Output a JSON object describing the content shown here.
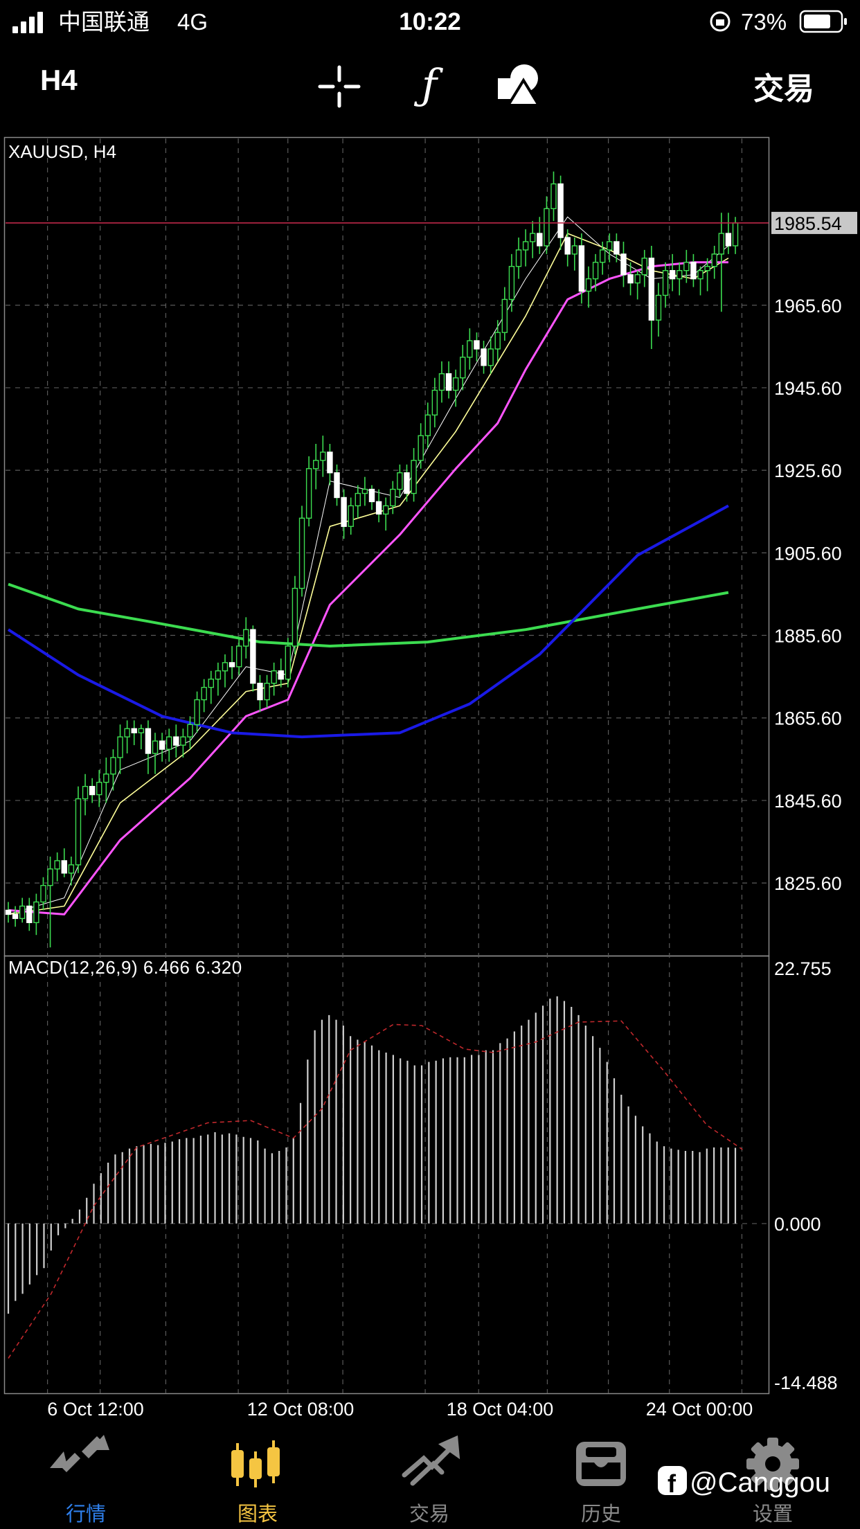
{
  "status_bar": {
    "carrier": "中国联通",
    "network": "4G",
    "time": "10:22",
    "battery": "73%"
  },
  "toolbar": {
    "timeframe": "H4",
    "trade_label": "交易",
    "icons": [
      "crosshair-icon",
      "function-icon",
      "objects-icon"
    ]
  },
  "chart": {
    "symbol_label": "XAUUSD, H4",
    "current_price": "1985.54",
    "macd_label": "MACD(12,26,9) 6.466 6.320"
  },
  "chart_data": [
    {
      "type": "candlestick",
      "title": "XAUUSD, H4",
      "ylim": [
        1808,
        2006
      ],
      "y_tick_labels": [
        "1825.60",
        "1845.60",
        "1865.60",
        "1885.60",
        "1905.60",
        "1925.60",
        "1945.60",
        "1965.60"
      ],
      "x_tick_labels": [
        "6 Oct 12:00",
        "12 Oct 08:00",
        "18 Oct 04:00",
        "24 Oct 00:00"
      ],
      "current_price": 1985.54,
      "grid": true,
      "ohlc": [
        [
          1819,
          1821,
          1816,
          1818
        ],
        [
          1818,
          1820,
          1815,
          1817
        ],
        [
          1817,
          1822,
          1816,
          1820
        ],
        [
          1820,
          1822,
          1814,
          1816
        ],
        [
          1816,
          1823,
          1813,
          1821
        ],
        [
          1821,
          1827,
          1819,
          1825
        ],
        [
          1825,
          1832,
          1810,
          1829
        ],
        [
          1829,
          1833,
          1826,
          1831
        ],
        [
          1831,
          1834,
          1827,
          1828
        ],
        [
          1828,
          1832,
          1825,
          1830
        ],
        [
          1830,
          1849,
          1828,
          1846
        ],
        [
          1846,
          1852,
          1842,
          1849
        ],
        [
          1849,
          1851,
          1845,
          1847
        ],
        [
          1847,
          1853,
          1844,
          1850
        ],
        [
          1850,
          1856,
          1845,
          1852
        ],
        [
          1852,
          1858,
          1848,
          1856
        ],
        [
          1856,
          1864,
          1852,
          1861
        ],
        [
          1861,
          1865,
          1857,
          1863
        ],
        [
          1863,
          1865,
          1859,
          1862
        ],
        [
          1862,
          1864,
          1858,
          1863
        ],
        [
          1863,
          1865,
          1852,
          1857
        ],
        [
          1857,
          1862,
          1852,
          1860
        ],
        [
          1860,
          1862,
          1855,
          1858
        ],
        [
          1858,
          1863,
          1855,
          1861
        ],
        [
          1861,
          1864,
          1856,
          1859
        ],
        [
          1859,
          1863,
          1856,
          1861
        ],
        [
          1861,
          1866,
          1858,
          1864
        ],
        [
          1864,
          1872,
          1862,
          1870
        ],
        [
          1870,
          1875,
          1867,
          1873
        ],
        [
          1873,
          1877,
          1869,
          1875
        ],
        [
          1875,
          1879,
          1871,
          1877
        ],
        [
          1877,
          1881,
          1873,
          1879
        ],
        [
          1879,
          1883,
          1875,
          1878
        ],
        [
          1878,
          1885,
          1876,
          1883
        ],
        [
          1883,
          1890,
          1880,
          1887
        ],
        [
          1887,
          1888,
          1872,
          1874
        ],
        [
          1874,
          1876,
          1867,
          1870
        ],
        [
          1870,
          1876,
          1868,
          1874
        ],
        [
          1874,
          1879,
          1871,
          1877
        ],
        [
          1877,
          1880,
          1873,
          1875
        ],
        [
          1875,
          1885,
          1873,
          1883
        ],
        [
          1883,
          1900,
          1881,
          1897
        ],
        [
          1897,
          1917,
          1895,
          1914
        ],
        [
          1914,
          1929,
          1912,
          1926
        ],
        [
          1926,
          1932,
          1921,
          1928
        ],
        [
          1928,
          1934,
          1924,
          1930
        ],
        [
          1930,
          1932,
          1922,
          1925
        ],
        [
          1925,
          1927,
          1917,
          1919
        ],
        [
          1919,
          1921,
          1909,
          1912
        ],
        [
          1912,
          1919,
          1910,
          1917
        ],
        [
          1917,
          1922,
          1914,
          1920
        ],
        [
          1920,
          1924,
          1917,
          1921
        ],
        [
          1921,
          1922,
          1916,
          1918
        ],
        [
          1918,
          1921,
          1913,
          1915
        ],
        [
          1915,
          1919,
          1911,
          1917
        ],
        [
          1917,
          1923,
          1915,
          1921
        ],
        [
          1921,
          1927,
          1919,
          1925
        ],
        [
          1925,
          1927,
          1918,
          1920
        ],
        [
          1920,
          1931,
          1918,
          1928
        ],
        [
          1928,
          1937,
          1926,
          1934
        ],
        [
          1934,
          1942,
          1931,
          1939
        ],
        [
          1939,
          1948,
          1936,
          1945
        ],
        [
          1945,
          1952,
          1942,
          1949
        ],
        [
          1949,
          1952,
          1943,
          1945
        ],
        [
          1945,
          1950,
          1941,
          1948
        ],
        [
          1948,
          1956,
          1945,
          1953
        ],
        [
          1953,
          1960,
          1950,
          1957
        ],
        [
          1957,
          1959,
          1952,
          1955
        ],
        [
          1955,
          1957,
          1949,
          1951
        ],
        [
          1951,
          1958,
          1949,
          1955
        ],
        [
          1955,
          1962,
          1952,
          1959
        ],
        [
          1959,
          1970,
          1957,
          1967
        ],
        [
          1967,
          1978,
          1964,
          1975
        ],
        [
          1975,
          1982,
          1972,
          1979
        ],
        [
          1979,
          1984,
          1975,
          1981
        ],
        [
          1981,
          1986,
          1977,
          1983
        ],
        [
          1983,
          1987,
          1978,
          1980
        ],
        [
          1980,
          1992,
          1978,
          1989
        ],
        [
          1989,
          1998,
          1986,
          1995
        ],
        [
          1995,
          1997,
          1979,
          1982
        ],
        [
          1982,
          1984,
          1975,
          1978
        ],
        [
          1978,
          1982,
          1974,
          1980
        ],
        [
          1980,
          1983,
          1966,
          1969
        ],
        [
          1969,
          1975,
          1965,
          1972
        ],
        [
          1972,
          1978,
          1969,
          1976
        ],
        [
          1976,
          1981,
          1973,
          1979
        ],
        [
          1979,
          1983,
          1976,
          1981
        ],
        [
          1981,
          1983,
          1976,
          1978
        ],
        [
          1978,
          1981,
          1970,
          1973
        ],
        [
          1973,
          1976,
          1968,
          1971
        ],
        [
          1971,
          1974,
          1967,
          1973
        ],
        [
          1973,
          1979,
          1970,
          1977
        ],
        [
          1977,
          1980,
          1955,
          1962
        ],
        [
          1962,
          1971,
          1958,
          1968
        ],
        [
          1968,
          1976,
          1965,
          1974
        ],
        [
          1974,
          1978,
          1969,
          1972
        ],
        [
          1972,
          1976,
          1968,
          1974
        ],
        [
          1974,
          1979,
          1971,
          1976
        ],
        [
          1976,
          1978,
          1970,
          1972
        ],
        [
          1972,
          1975,
          1968,
          1974
        ],
        [
          1974,
          1977,
          1969,
          1975
        ],
        [
          1975,
          1980,
          1972,
          1978
        ],
        [
          1978,
          1988,
          1964,
          1983
        ],
        [
          1983,
          1988,
          1978,
          1980
        ],
        [
          1980,
          1987,
          1978,
          1985.54
        ]
      ],
      "ma_lines": [
        {
          "color": "#ffffff",
          "values": [
            [
              0,
              1818
            ],
            [
              8,
              1822
            ],
            [
              16,
              1853
            ],
            [
              26,
              1860
            ],
            [
              34,
              1878
            ],
            [
              40,
              1876
            ],
            [
              46,
              1923
            ],
            [
              56,
              1919
            ],
            [
              64,
              1943
            ],
            [
              74,
              1972
            ],
            [
              80,
              1987
            ],
            [
              86,
              1978
            ],
            [
              92,
              1972
            ],
            [
              98,
              1973
            ],
            [
              103,
              1980
            ]
          ]
        },
        {
          "color": "#ffff99",
          "values": [
            [
              0,
              1818
            ],
            [
              8,
              1820
            ],
            [
              16,
              1845
            ],
            [
              26,
              1858
            ],
            [
              34,
              1872
            ],
            [
              40,
              1874
            ],
            [
              46,
              1912
            ],
            [
              56,
              1917
            ],
            [
              64,
              1935
            ],
            [
              74,
              1963
            ],
            [
              80,
              1983
            ],
            [
              86,
              1979
            ],
            [
              92,
              1974
            ],
            [
              98,
              1972
            ],
            [
              103,
              1977
            ]
          ]
        },
        {
          "color": "#ff55ff",
          "values": [
            [
              0,
              1819
            ],
            [
              8,
              1818
            ],
            [
              16,
              1836
            ],
            [
              26,
              1851
            ],
            [
              34,
              1866
            ],
            [
              40,
              1870
            ],
            [
              46,
              1893
            ],
            [
              56,
              1910
            ],
            [
              64,
              1926
            ],
            [
              70,
              1937
            ],
            [
              74,
              1950
            ],
            [
              80,
              1967
            ],
            [
              86,
              1972
            ],
            [
              92,
              1975
            ],
            [
              98,
              1976
            ],
            [
              103,
              1976
            ]
          ]
        },
        {
          "color": "#3cdc50",
          "values": [
            [
              0,
              1898
            ],
            [
              10,
              1892
            ],
            [
              20,
              1889
            ],
            [
              36,
              1884
            ],
            [
              46,
              1883
            ],
            [
              60,
              1884
            ],
            [
              74,
              1887
            ],
            [
              90,
              1892
            ],
            [
              103,
              1896
            ]
          ]
        },
        {
          "color": "#1a1ae6",
          "values": [
            [
              0,
              1887
            ],
            [
              10,
              1876
            ],
            [
              22,
              1866
            ],
            [
              32,
              1862
            ],
            [
              42,
              1861
            ],
            [
              56,
              1862
            ],
            [
              66,
              1869
            ],
            [
              76,
              1881
            ],
            [
              90,
              1905
            ],
            [
              103,
              1917
            ]
          ]
        }
      ]
    },
    {
      "type": "bar",
      "title": "MACD(12,26,9) 6.466 6.320",
      "ylim": [
        -14.488,
        22.755
      ],
      "y_tick_labels": [
        "22.755",
        "0.000",
        "-14.488"
      ],
      "values": [
        -7.7,
        -6.6,
        -6.0,
        -5.2,
        -4.4,
        -3.8,
        -2.3,
        -1.0,
        -0.4,
        0.4,
        1.2,
        2.2,
        3.4,
        4.3,
        5.2,
        5.9,
        6.1,
        6.4,
        6.6,
        6.7,
        6.8,
        6.7,
        6.9,
        7.0,
        7.2,
        7.3,
        7.3,
        7.5,
        7.6,
        7.8,
        7.6,
        7.7,
        7.6,
        7.4,
        7.3,
        7.1,
        6.4,
        6.0,
        6.2,
        6.5,
        7.3,
        10.3,
        14.0,
        16.5,
        17.4,
        17.8,
        17.4,
        16.9,
        16.0,
        15.7,
        15.5,
        15.2,
        14.8,
        14.6,
        14.4,
        14.1,
        13.9,
        13.5,
        13.5,
        13.8,
        13.9,
        14.1,
        14.2,
        14.2,
        14.2,
        14.4,
        14.4,
        14.8,
        14.8,
        15.4,
        15.8,
        16.4,
        16.9,
        17.4,
        18.0,
        18.6,
        19.2,
        19.4,
        19.0,
        18.5,
        17.8,
        16.9,
        16.0,
        15.0,
        13.8,
        12.4,
        11.0,
        10.0,
        9.2,
        8.3,
        7.7,
        7.0,
        6.6,
        6.4,
        6.3,
        6.2,
        6.2,
        6.1,
        6.4,
        6.5,
        6.5,
        6.5,
        6.466
      ],
      "signal": [
        [
          0,
          -11.5
        ],
        [
          6,
          -6
        ],
        [
          12,
          1.5
        ],
        [
          18,
          6.5
        ],
        [
          28,
          8.6
        ],
        [
          34,
          8.8
        ],
        [
          40,
          7.3
        ],
        [
          44,
          9.8
        ],
        [
          48,
          14.8
        ],
        [
          54,
          17
        ],
        [
          58,
          16.9
        ],
        [
          64,
          14.9
        ],
        [
          68,
          14.6
        ],
        [
          74,
          15.5
        ],
        [
          80,
          17.2
        ],
        [
          86,
          17.3
        ],
        [
          92,
          13
        ],
        [
          98,
          8.4
        ],
        [
          103,
          6.32
        ]
      ]
    }
  ],
  "nav": {
    "tabs": [
      {
        "label": "行情",
        "icon": "quotes-icon"
      },
      {
        "label": "图表",
        "icon": "chart-icon"
      },
      {
        "label": "交易",
        "icon": "trade-icon"
      },
      {
        "label": "历史",
        "icon": "history-icon"
      },
      {
        "label": "设置",
        "icon": "settings-icon"
      }
    ],
    "active_index": 1
  },
  "watermark": "@Canggou",
  "colors": {
    "background": "#000000",
    "grid": "#5a5a5a",
    "candle_bull": "#ffffff",
    "candle_wick": "#3cdc50",
    "price_line": "#c0284a",
    "active_tab": "#f5c542",
    "quotes_tab": "#2f80ed",
    "inactive_tab": "#8a8a8a"
  }
}
